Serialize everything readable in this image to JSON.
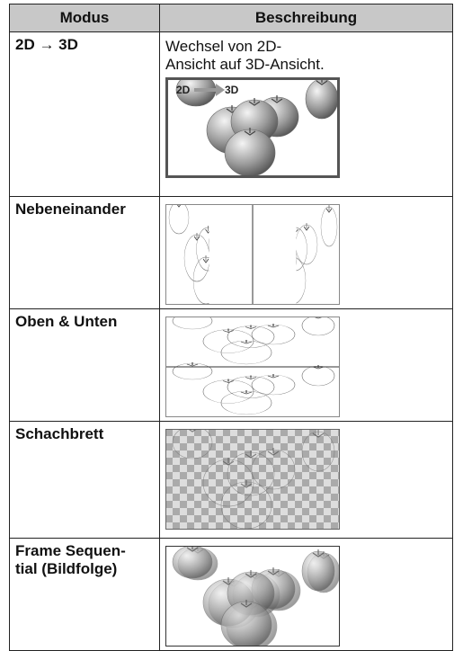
{
  "table": {
    "header": [
      "Modus",
      "Beschreibung"
    ],
    "rows": [
      {
        "mode": "2D → 3D",
        "description": "Wechsel von 2D-Ansicht auf 3D-Ansicht.",
        "image_labels": [
          "2D",
          "3D"
        ]
      },
      {
        "mode": "Nebeneinander"
      },
      {
        "mode": "Oben & Unten"
      },
      {
        "mode": "Schachbrett"
      },
      {
        "mode": "Frame Sequen­tial (Bildfolge)"
      }
    ]
  }
}
